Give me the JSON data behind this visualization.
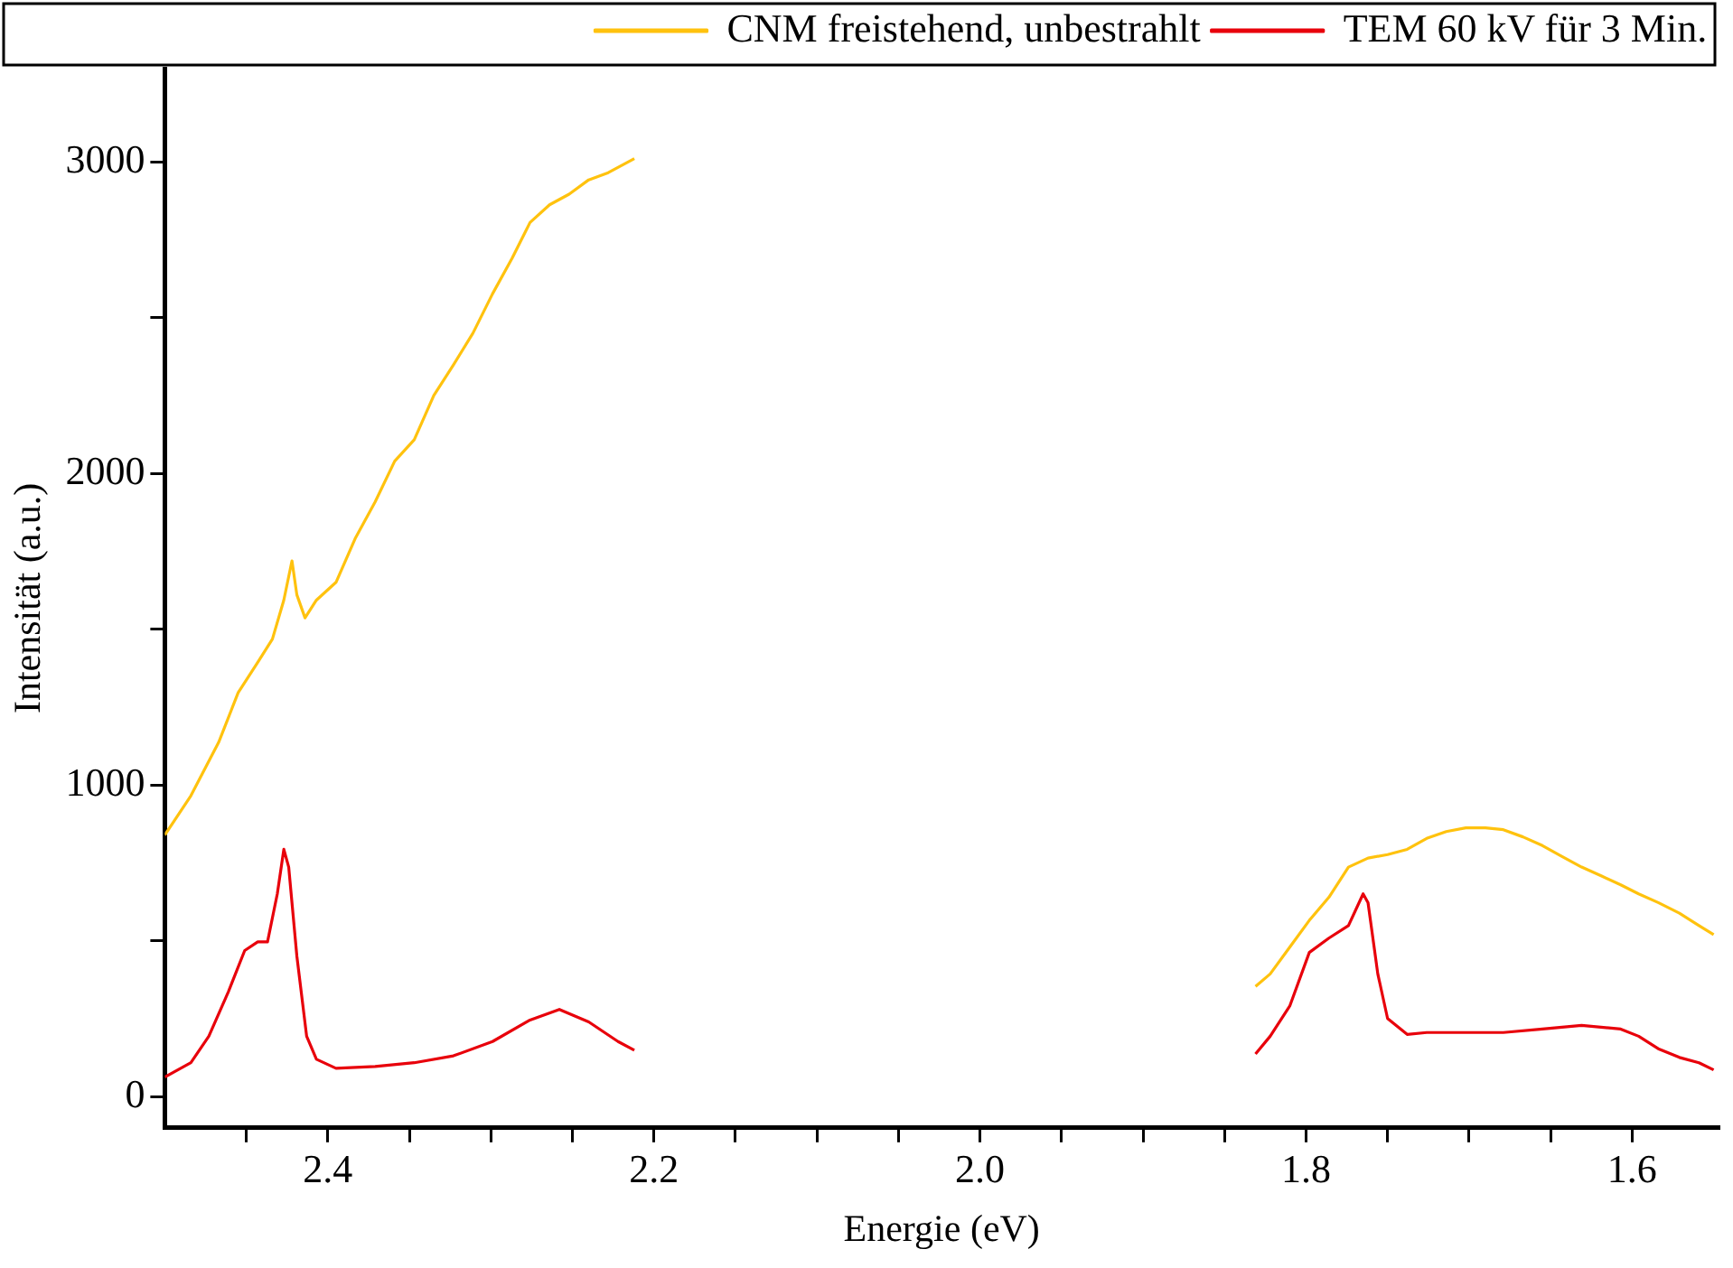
{
  "chart_data": {
    "type": "line",
    "xlabel": "Energie (eV)",
    "ylabel": "Intensität (a.u.)",
    "xlim": [
      2.5,
      1.547
    ],
    "xticks": [
      {
        "value": 2.45,
        "label": null
      },
      2.4,
      {
        "value": 2.35,
        "label": null
      },
      {
        "value": 2.3,
        "label": null
      },
      {
        "value": 2.25,
        "label": null
      },
      2.2,
      {
        "value": 2.15,
        "label": null
      },
      {
        "value": 2.1,
        "label": null
      },
      {
        "value": 2.05,
        "label": null
      },
      {
        "value": 2.0,
        "label": "2.0"
      },
      {
        "value": 1.95,
        "label": null
      },
      {
        "value": 1.9,
        "label": null
      },
      {
        "value": 1.85,
        "label": null
      },
      1.8,
      {
        "value": 1.75,
        "label": null
      },
      {
        "value": 1.7,
        "label": null
      },
      {
        "value": 1.65,
        "label": null
      },
      1.6
    ],
    "ylim": [
      -100,
      3300
    ],
    "yticks": [
      0,
      {
        "value": 500,
        "label": null
      },
      1000,
      {
        "value": 1500,
        "label": null
      },
      2000,
      {
        "value": 2500,
        "label": null
      },
      3000
    ],
    "legend": "top right",
    "marker": "none",
    "line_style": "solid",
    "series": [
      {
        "name": "CNM freistehend, unbestrahlt",
        "color": "#ffc20e",
        "x": [
          2.5,
          2.484,
          2.467,
          2.455,
          2.443,
          2.434,
          2.427,
          2.422,
          2.419,
          2.414,
          2.407,
          2.395,
          2.383,
          2.371,
          2.359,
          2.347,
          2.335,
          2.323,
          2.311,
          2.299,
          2.287,
          2.276,
          2.264,
          2.252,
          2.24,
          2.228,
          2.212,
          2.0,
          1.831,
          1.822,
          1.81,
          1.798,
          1.786,
          1.774,
          1.762,
          1.75,
          1.738,
          1.726,
          1.714,
          1.702,
          1.69,
          1.679,
          1.667,
          1.655,
          1.643,
          1.631,
          1.619,
          1.607,
          1.596,
          1.584,
          1.571,
          1.559,
          1.55
        ],
        "values": [
          840,
          966,
          1137,
          1297,
          1394,
          1469,
          1594,
          1720,
          1611,
          1537,
          1594,
          1651,
          1794,
          1909,
          2040,
          2109,
          2251,
          2349,
          2451,
          2577,
          2691,
          2806,
          2863,
          2897,
          2943,
          2966,
          3011,
          null,
          354,
          394,
          480,
          566,
          640,
          737,
          766,
          777,
          794,
          829,
          851,
          863,
          863,
          857,
          834,
          806,
          771,
          737,
          709,
          680,
          651,
          623,
          589,
          549,
          520
        ]
      },
      {
        "name": "TEM 60 kV für 3 Min.",
        "color": "#e8000b",
        "x": [
          2.5,
          2.484,
          2.473,
          2.461,
          2.451,
          2.443,
          2.437,
          2.431,
          2.427,
          2.424,
          2.419,
          2.413,
          2.407,
          2.395,
          2.371,
          2.347,
          2.323,
          2.299,
          2.276,
          2.258,
          2.24,
          2.222,
          2.212,
          2.0,
          1.831,
          1.822,
          1.81,
          1.798,
          1.786,
          1.774,
          1.765,
          1.762,
          1.756,
          1.75,
          1.738,
          1.726,
          1.702,
          1.679,
          1.655,
          1.631,
          1.607,
          1.596,
          1.584,
          1.571,
          1.559,
          1.55
        ],
        "values": [
          63,
          109,
          194,
          337,
          469,
          497,
          497,
          651,
          794,
          737,
          451,
          194,
          120,
          91,
          97,
          109,
          131,
          177,
          246,
          280,
          240,
          177,
          149,
          null,
          137,
          194,
          291,
          463,
          509,
          549,
          651,
          623,
          394,
          251,
          200,
          206,
          206,
          206,
          217,
          229,
          217,
          194,
          154,
          126,
          109,
          86
        ]
      }
    ]
  }
}
